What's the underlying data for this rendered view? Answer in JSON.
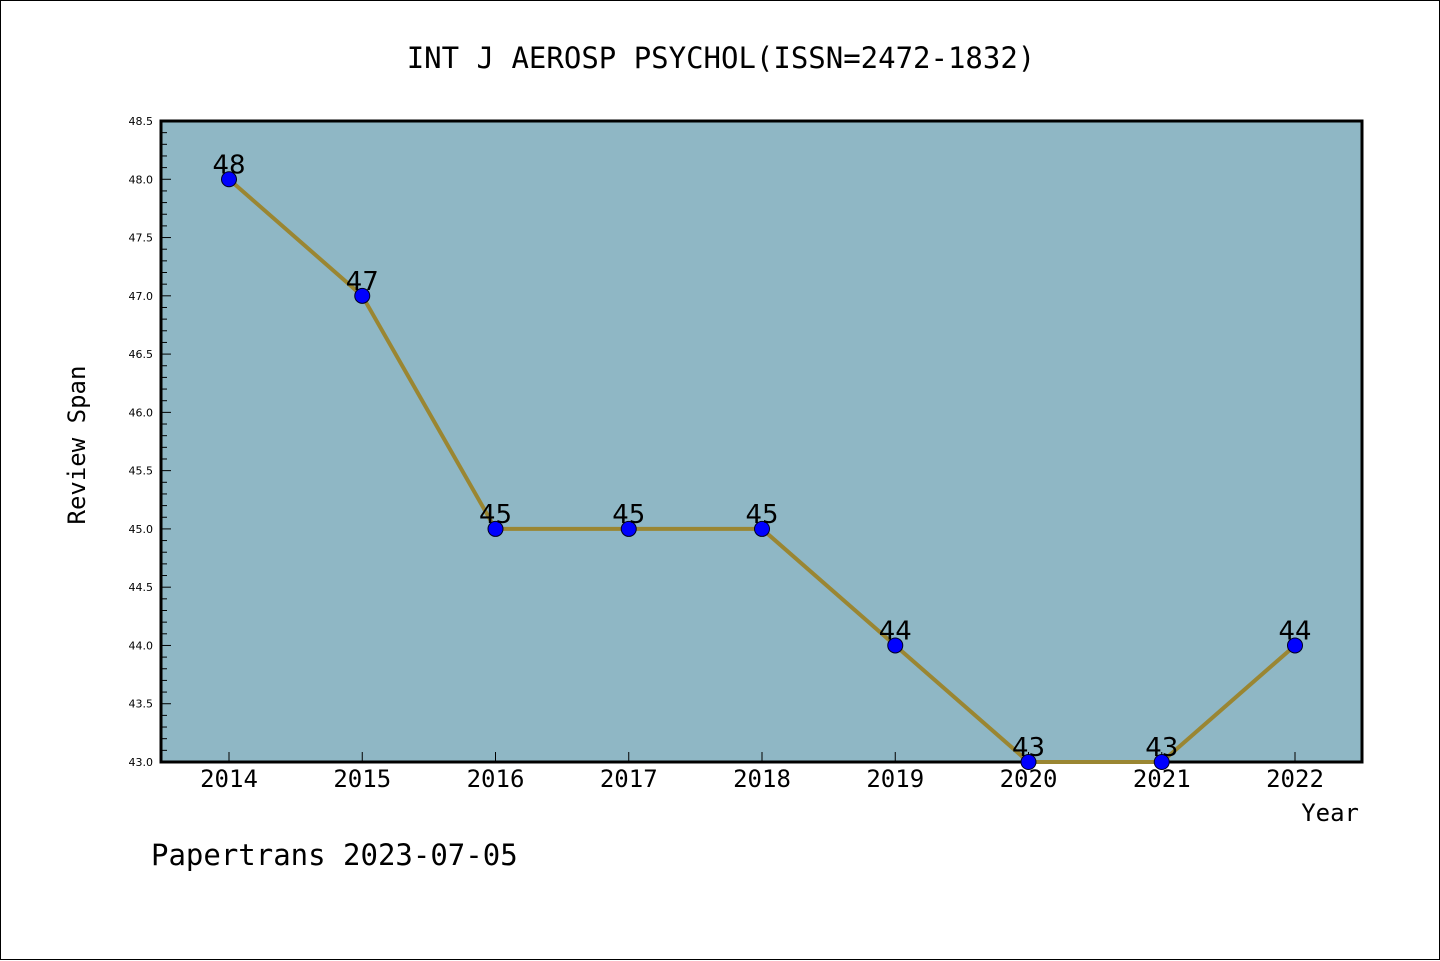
{
  "chart_data": {
    "type": "line",
    "title": "INT J AEROSP PSYCHOL(ISSN=2472-1832)",
    "xlabel": "Year",
    "ylabel": "Review Span",
    "footer": "Papertrans 2023-07-05",
    "x": [
      "2014",
      "2015",
      "2016",
      "2017",
      "2018",
      "2019",
      "2020",
      "2021",
      "2022"
    ],
    "series": [
      {
        "values": [
          48,
          47,
          45,
          45,
          45,
          44,
          43,
          43,
          44
        ],
        "data_labels": [
          "48",
          "47",
          "45",
          "45",
          "45",
          "44",
          "43",
          "43",
          "44"
        ]
      }
    ],
    "ylim": [
      43.0,
      48.5
    ],
    "yticks": [
      "43.0",
      "43.5",
      "44.0",
      "44.5",
      "45.0",
      "45.5",
      "46.0",
      "46.5",
      "47.0",
      "47.5",
      "48.0",
      "48.5"
    ],
    "grid": false,
    "legend": "none",
    "colors": {
      "plot_background": "#8fb7c5",
      "line": "#9a8632",
      "marker": "#0000ff"
    }
  }
}
